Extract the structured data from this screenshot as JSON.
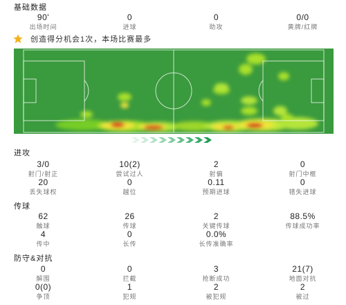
{
  "basic": {
    "title": "基础数据",
    "stats": [
      {
        "value": "90'",
        "label": "出场时间"
      },
      {
        "value": "0",
        "label": "进球"
      },
      {
        "value": "0",
        "label": "助攻"
      },
      {
        "value": "0/0",
        "label": "黄牌/红牌"
      }
    ]
  },
  "highlight": {
    "icon": "star-icon",
    "star_color": "#f5b01a",
    "text": "创造得分机会1次，本场比赛最多"
  },
  "heatmap": {
    "pitch_color": "#3a9a3e",
    "line_color": "#ffffff",
    "hot_color": "#d63a1a"
  },
  "attack": {
    "title": "进攻",
    "stats": [
      {
        "value": "3/0",
        "label": "射门/射正"
      },
      {
        "value": "10(2)",
        "label": "尝试过人"
      },
      {
        "value": "2",
        "label": "射偏"
      },
      {
        "value": "0",
        "label": "射门中框"
      },
      {
        "value": "20",
        "label": "丢失球权"
      },
      {
        "value": "0",
        "label": "越位"
      },
      {
        "value": "0.11",
        "label": "预期进球"
      },
      {
        "value": "0",
        "label": "错失进球"
      }
    ]
  },
  "passing": {
    "title": "传球",
    "stats": [
      {
        "value": "62",
        "label": "触球"
      },
      {
        "value": "26",
        "label": "传球"
      },
      {
        "value": "2",
        "label": "关键传球"
      },
      {
        "value": "88.5%",
        "label": "传球成功率"
      },
      {
        "value": "4",
        "label": "传中"
      },
      {
        "value": "0",
        "label": "长传"
      },
      {
        "value": "0.0%",
        "label": "长传准确率"
      }
    ]
  },
  "defense": {
    "title": "防守&对抗",
    "stats": [
      {
        "value": "0",
        "label": "解围"
      },
      {
        "value": "0",
        "label": "拦截"
      },
      {
        "value": "3",
        "label": "抢断成功"
      },
      {
        "value": "21(7)",
        "label": "地面对抗"
      },
      {
        "value": "0(0)",
        "label": "争顶"
      },
      {
        "value": "1",
        "label": "犯规"
      },
      {
        "value": "2",
        "label": "被犯规"
      },
      {
        "value": "2",
        "label": "被过"
      }
    ]
  }
}
